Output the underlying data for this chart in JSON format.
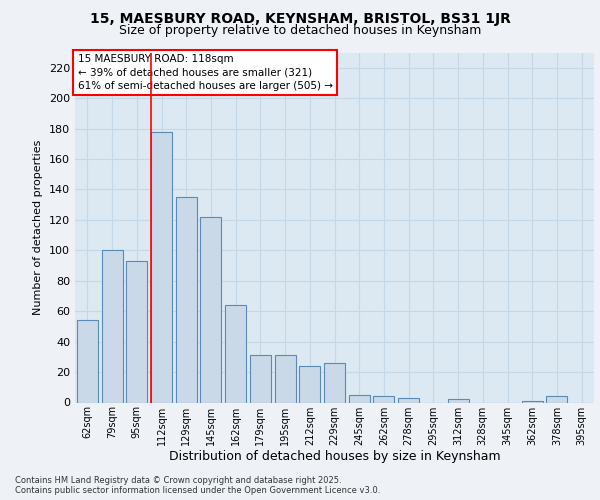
{
  "title1": "15, MAESBURY ROAD, KEYNSHAM, BRISTOL, BS31 1JR",
  "title2": "Size of property relative to detached houses in Keynsham",
  "xlabel": "Distribution of detached houses by size in Keynsham",
  "ylabel": "Number of detached properties",
  "categories": [
    "62sqm",
    "79sqm",
    "95sqm",
    "112sqm",
    "129sqm",
    "145sqm",
    "162sqm",
    "179sqm",
    "195sqm",
    "212sqm",
    "229sqm",
    "245sqm",
    "262sqm",
    "278sqm",
    "295sqm",
    "312sqm",
    "328sqm",
    "345sqm",
    "362sqm",
    "378sqm",
    "395sqm"
  ],
  "values": [
    54,
    100,
    93,
    178,
    135,
    122,
    64,
    31,
    31,
    24,
    26,
    5,
    4,
    3,
    0,
    2,
    0,
    0,
    1,
    4,
    0
  ],
  "bar_color": "#c9d9e8",
  "bar_edge_color": "#5a8ab5",
  "vline_x": 2.575,
  "vline_color": "red",
  "annotation_line1": "15 MAESBURY ROAD: 118sqm",
  "annotation_line2": "← 39% of detached houses are smaller (321)",
  "annotation_line3": "61% of semi-detached houses are larger (505) →",
  "ylim": [
    0,
    230
  ],
  "yticks": [
    0,
    20,
    40,
    60,
    80,
    100,
    120,
    140,
    160,
    180,
    200,
    220
  ],
  "footer": "Contains HM Land Registry data © Crown copyright and database right 2025.\nContains public sector information licensed under the Open Government Licence v3.0.",
  "bg_color": "#eef2f7",
  "plot_bg_color": "#dce8f2",
  "grid_color": "#c5d8e8"
}
